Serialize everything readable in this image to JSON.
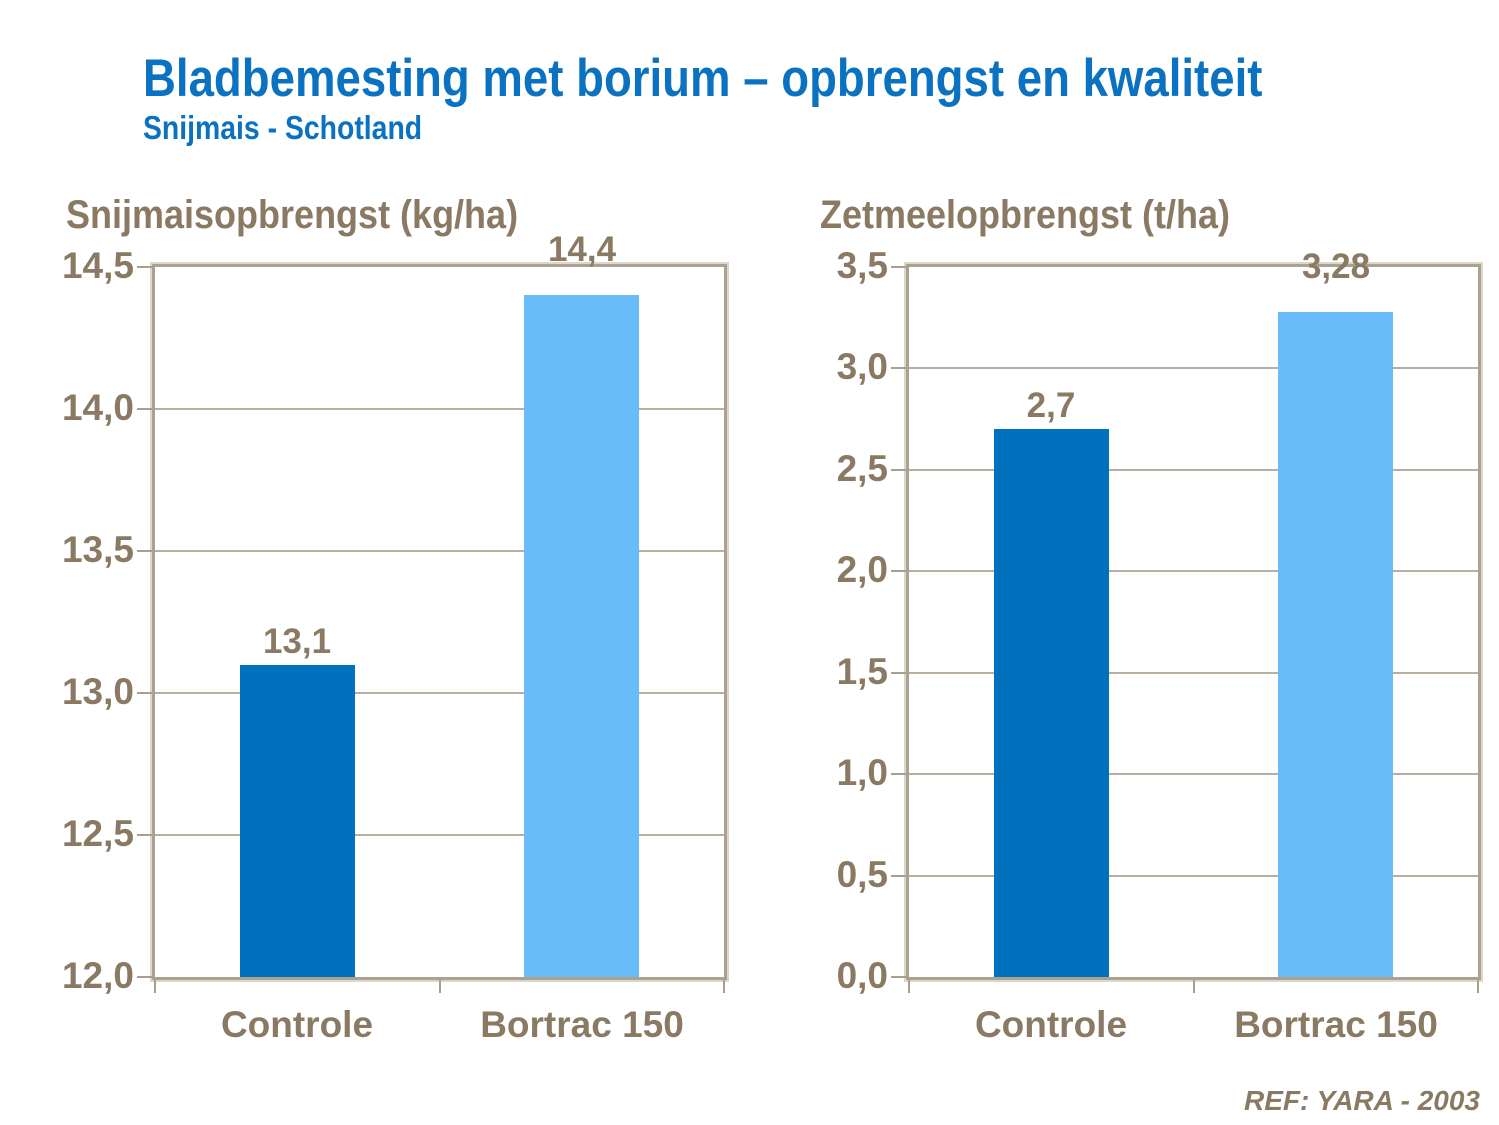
{
  "header": {
    "title": "Bladbemesting met borium – opbrengst en kwaliteit",
    "subtitle": "Snijmais - Schotland"
  },
  "footer": {
    "ref": "REF: YARA - 2003"
  },
  "colors": {
    "title_blue": "#0b72c2",
    "text_brown": "#8b7a63",
    "axis_taupe": "#aba191",
    "gridline_taupe": "#b9af9f",
    "bar_controle_dark_blue": "#0071bd",
    "bar_bortrac_light_blue": "#68bdf8"
  },
  "chart_data": [
    {
      "type": "bar",
      "title": "Snijmaisopbrengst (kg/ha)",
      "categories": [
        "Controle",
        "Bortrac 150"
      ],
      "values": [
        13.1,
        14.4
      ],
      "value_labels": [
        "13,1",
        "14,4"
      ],
      "bar_colors": [
        "#0071bd",
        "#68bdf8"
      ],
      "xlabel": "",
      "ylabel": "",
      "ylim": [
        12.0,
        14.5
      ],
      "ytick_step": 0.5,
      "ytick_labels": [
        "12,0",
        "12,5",
        "13,0",
        "13,5",
        "14,0",
        "14,5"
      ],
      "grid": true,
      "legend": "none"
    },
    {
      "type": "bar",
      "title": "Zetmeelopbrengst (t/ha)",
      "categories": [
        "Controle",
        "Bortrac 150"
      ],
      "values": [
        2.7,
        3.28
      ],
      "value_labels": [
        "2,7",
        "3,28"
      ],
      "bar_colors": [
        "#0071bd",
        "#68bdf8"
      ],
      "xlabel": "",
      "ylabel": "",
      "ylim": [
        0.0,
        3.5
      ],
      "ytick_step": 0.5,
      "ytick_labels": [
        "0,0",
        "0,5",
        "1,0",
        "1,5",
        "2,0",
        "2,5",
        "3,0",
        "3,5"
      ],
      "grid": true,
      "legend": "none"
    }
  ]
}
